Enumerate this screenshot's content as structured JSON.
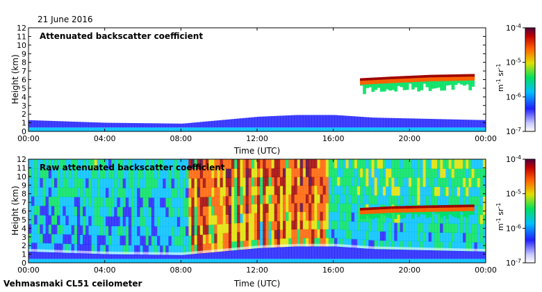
{
  "date_label": "21 June 2016",
  "footer": "Vehmasmaki CL51 ceilometer",
  "colors": {
    "scale": [
      "#ffffff",
      "#2020ff",
      "#00c0ff",
      "#00e060",
      "#e0e000",
      "#ff6000",
      "#a00000",
      "#500040"
    ]
  },
  "chart_data": [
    {
      "type": "heatmap",
      "title": "Attenuated backscatter coefficient",
      "xlabel": "Time (UTC)",
      "ylabel": "Height (km)",
      "xlim": [
        0,
        24
      ],
      "ylim": [
        0,
        12
      ],
      "x_ticks": [
        "00:00",
        "04:00",
        "08:00",
        "12:00",
        "16:00",
        "20:00",
        "00:00"
      ],
      "y_ticks": [
        "0",
        "1",
        "2",
        "3",
        "4",
        "5",
        "6",
        "7",
        "8",
        "9",
        "10",
        "11",
        "12"
      ],
      "colorbar": {
        "scale": "log",
        "range": [
          1e-07,
          0.0001
        ],
        "tick_labels": [
          {
            "base": "10",
            "exp": "-7"
          },
          {
            "base": "10",
            "exp": "-6"
          },
          {
            "base": "10",
            "exp": "-5"
          },
          {
            "base": "10",
            "exp": "-4"
          }
        ],
        "unit": {
          "u1": "m",
          "e1": "-1",
          "u2": " sr",
          "e2": "-1"
        }
      },
      "features": {
        "boundary_layer_top_km": [
          [
            0,
            1.3
          ],
          [
            4,
            1.0
          ],
          [
            8,
            0.9
          ],
          [
            10,
            1.3
          ],
          [
            12,
            1.7
          ],
          [
            14,
            1.9
          ],
          [
            16,
            1.9
          ],
          [
            18,
            1.6
          ],
          [
            20,
            1.5
          ],
          [
            22,
            1.4
          ],
          [
            24,
            1.3
          ]
        ],
        "cloud_layer": {
          "start_h": 17.3,
          "end_h": 23.3,
          "base_km": [
            [
              17.3,
              6.0
            ],
            [
              19,
              6.2
            ],
            [
              21,
              6.4
            ],
            [
              23.3,
              6.5
            ]
          ],
          "depth_km": 1.8
        }
      }
    },
    {
      "type": "heatmap",
      "title": "Raw attenuated backscatter coefficient",
      "xlabel": "Time (UTC)",
      "ylabel": "Height (km)",
      "xlim": [
        0,
        24
      ],
      "ylim": [
        0,
        12
      ],
      "x_ticks": [
        "00:00",
        "04:00",
        "08:00",
        "12:00",
        "16:00",
        "20:00",
        "00:00"
      ],
      "y_ticks": [
        "0",
        "1",
        "2",
        "3",
        "4",
        "5",
        "6",
        "7",
        "8",
        "9",
        "10",
        "11",
        "12"
      ],
      "colorbar": {
        "scale": "log",
        "range": [
          1e-07,
          0.0001
        ],
        "tick_labels": [
          {
            "base": "10",
            "exp": "-7"
          },
          {
            "base": "10",
            "exp": "-6"
          },
          {
            "base": "10",
            "exp": "-5"
          },
          {
            "base": "10",
            "exp": "-4"
          }
        ],
        "unit": {
          "u1": "m",
          "e1": "-1",
          "u2": " sr",
          "e2": "-1"
        }
      },
      "features": {
        "boundary_layer_top_km": [
          [
            0,
            1.3
          ],
          [
            4,
            1.0
          ],
          [
            8,
            0.9
          ],
          [
            10,
            1.3
          ],
          [
            12,
            1.7
          ],
          [
            14,
            1.9
          ],
          [
            16,
            1.9
          ],
          [
            18,
            1.6
          ],
          [
            20,
            1.5
          ],
          [
            22,
            1.4
          ],
          [
            24,
            1.3
          ]
        ],
        "cloud_layer": {
          "start_h": 17.3,
          "end_h": 23.3,
          "base_km": [
            [
              17.3,
              6.2
            ],
            [
              19,
              6.4
            ],
            [
              21,
              6.5
            ],
            [
              23.3,
              6.6
            ]
          ],
          "depth_km": 1.5
        }
      }
    }
  ]
}
